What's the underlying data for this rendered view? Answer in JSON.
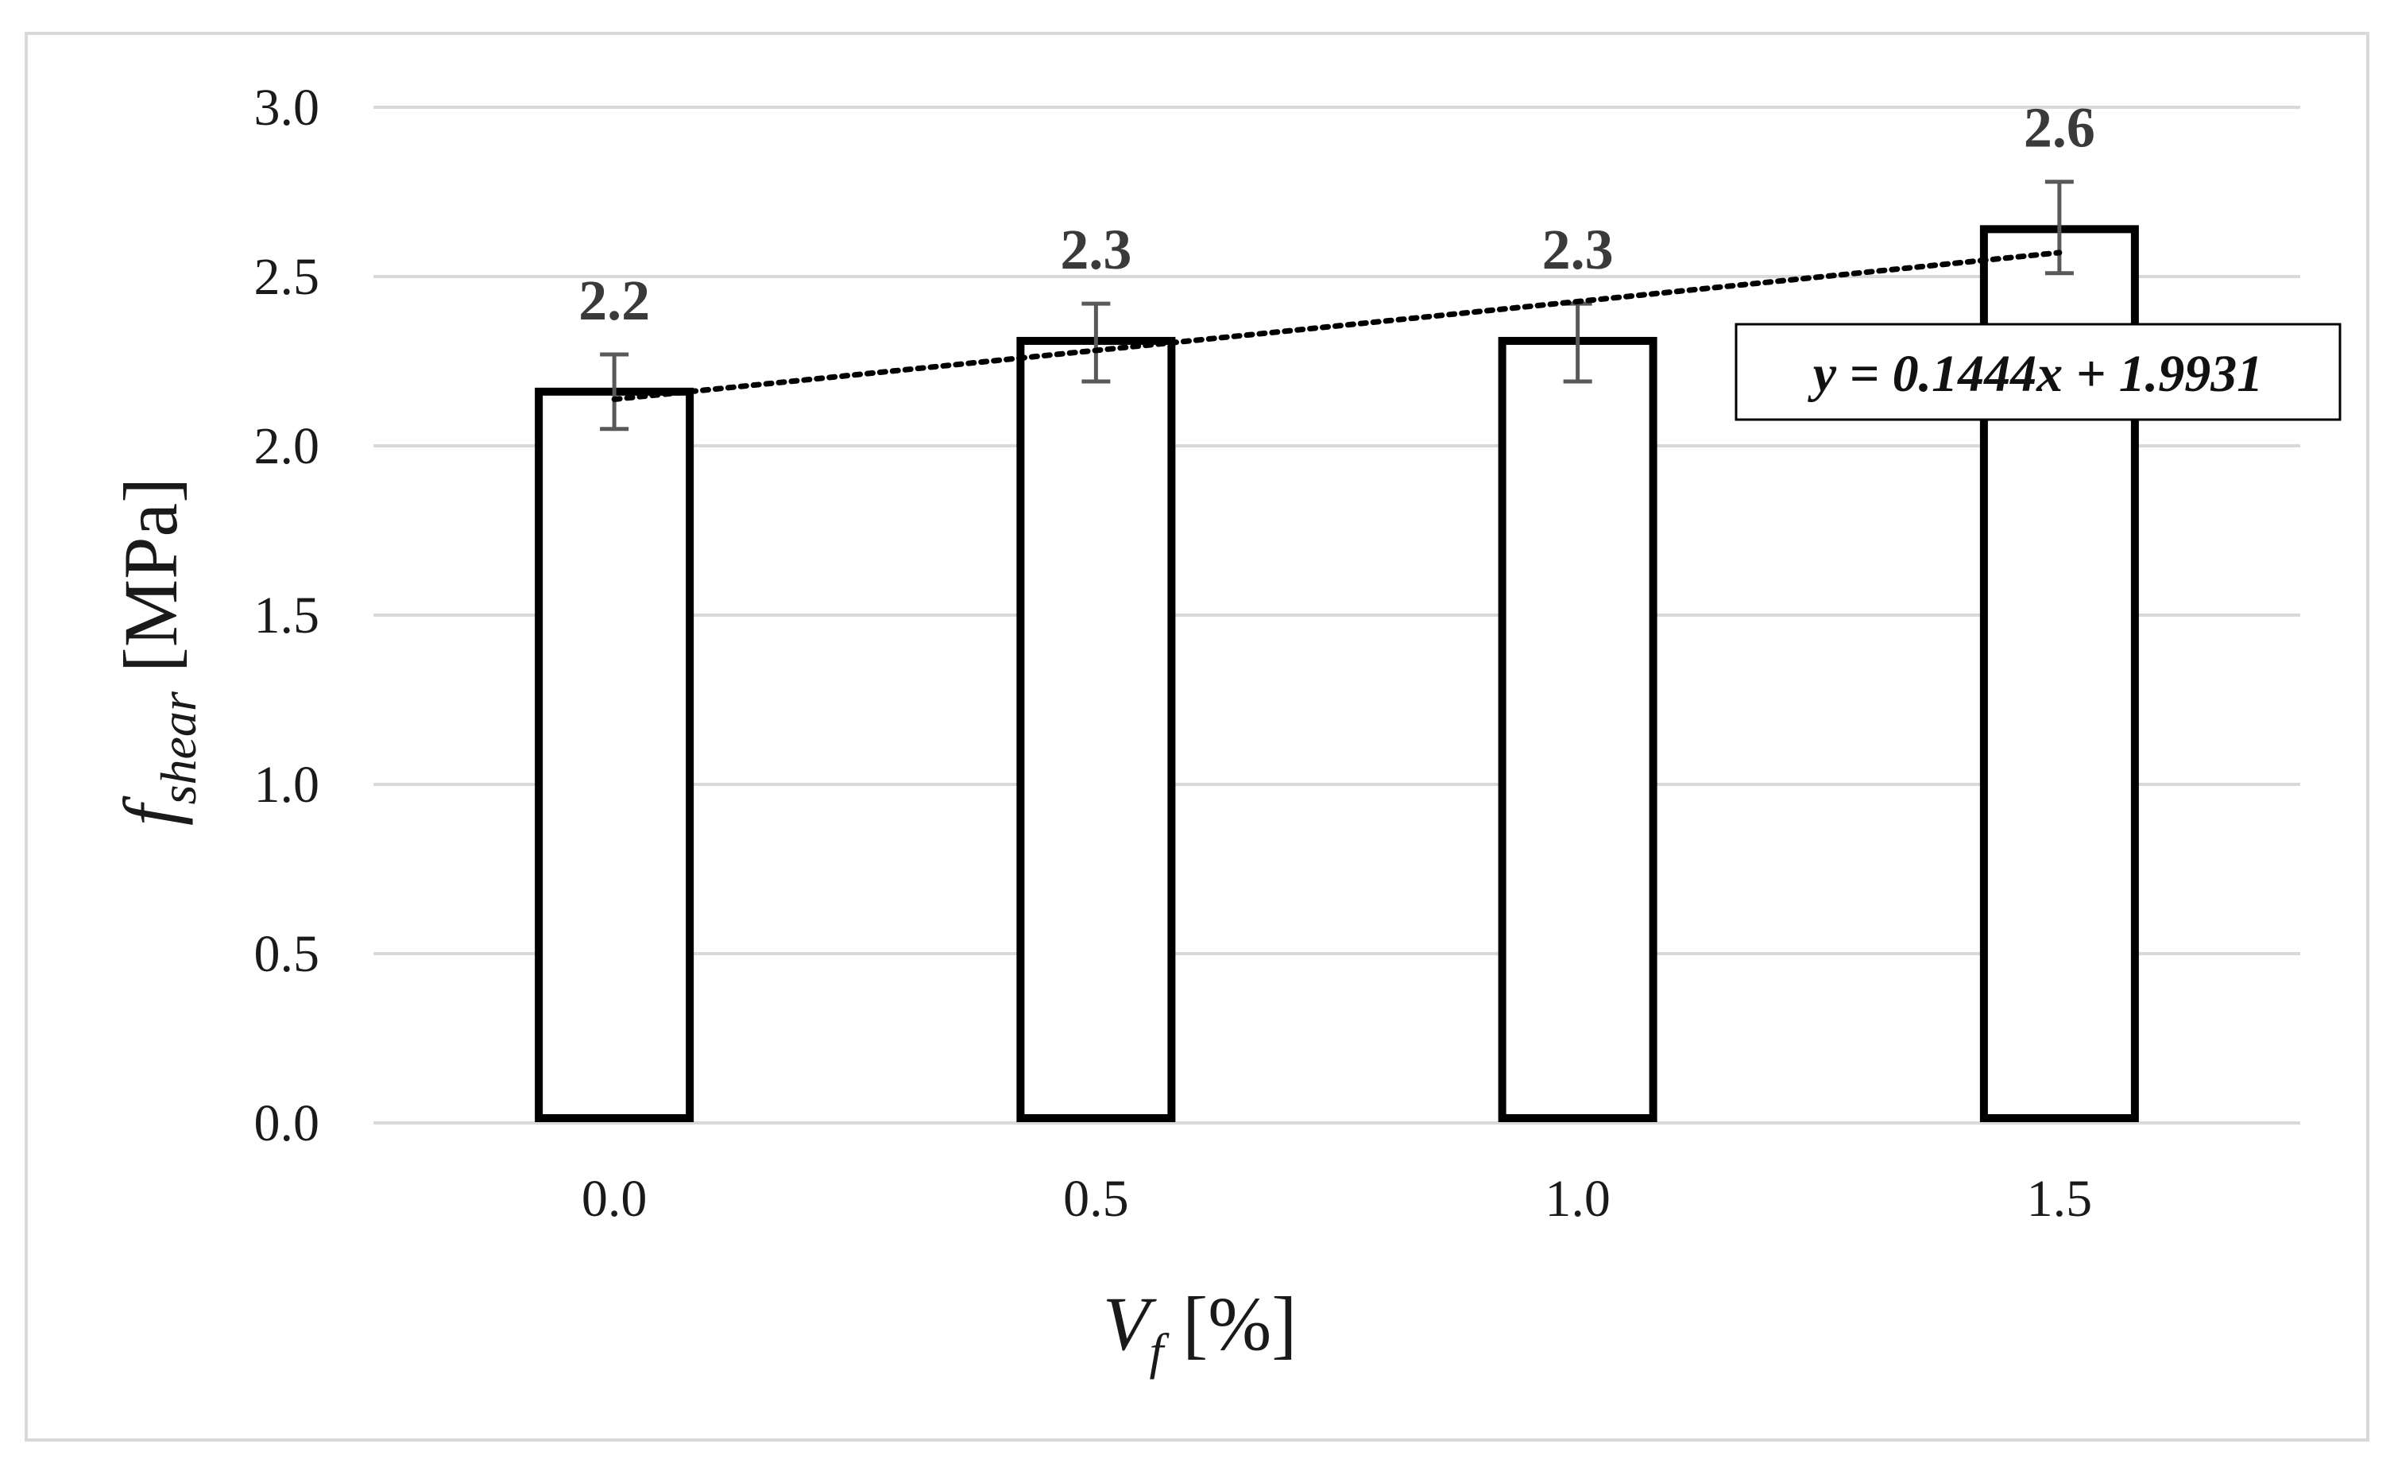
{
  "chart_data": {
    "type": "bar",
    "categories": [
      "0.0",
      "0.5",
      "1.0",
      "1.5"
    ],
    "x": [
      0.0,
      0.5,
      1.0,
      1.5
    ],
    "values": [
      2.16,
      2.31,
      2.31,
      2.64
    ],
    "data_labels": [
      "2.2",
      "2.3",
      "2.3",
      "2.6"
    ],
    "error_bars": [
      {
        "low": 2.05,
        "high": 2.27
      },
      {
        "low": 2.19,
        "high": 2.42
      },
      {
        "low": 2.19,
        "high": 2.42
      },
      {
        "low": 2.51,
        "high": 2.78
      }
    ],
    "trendline": {
      "type": "linear",
      "slope": 0.1444,
      "intercept": 1.9931,
      "style": "dotted",
      "equation": "y = 0.1444x + 1.9931"
    },
    "xlabel": {
      "main": "V",
      "sub": "f",
      "unit": " [%]"
    },
    "ylabel": {
      "main": "f",
      "sub": "shear",
      "unit": " [MPa]"
    },
    "ylim": [
      0,
      3.0
    ],
    "yticks": [
      "0.0",
      "0.5",
      "1.0",
      "1.5",
      "2.0",
      "2.5",
      "3.0"
    ],
    "ytick_values": [
      0,
      0.5,
      1.0,
      1.5,
      2.0,
      2.5,
      3.0
    ],
    "grid": true,
    "legend": "none",
    "colors": {
      "bar_fill": "#ffffff",
      "bar_stroke": "#000000",
      "grid": "#d9d9d9",
      "error_bar": "#595959",
      "trendline": "#000000",
      "frame": "#d9d9d9"
    }
  }
}
